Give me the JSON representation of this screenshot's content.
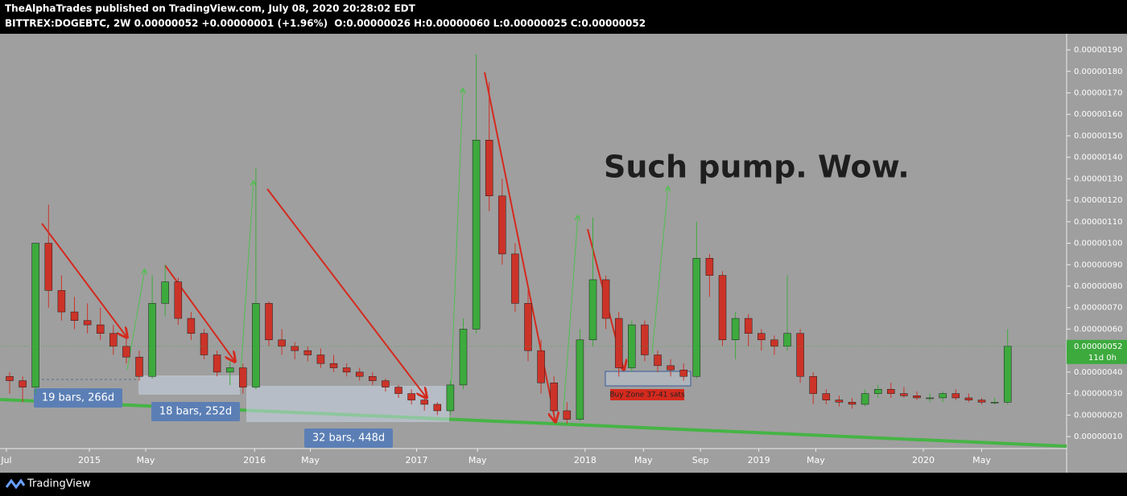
{
  "header": {
    "publisher": "TheAlphaTrades published on TradingView.com, July 08, 2020 20:28:02 EDT",
    "symbol": "BITTREX:DOGEBTC, 2W",
    "last": "0.00000052",
    "change": "+0.00000001 (+1.96%)",
    "ohlc": [
      {
        "label": "O:",
        "value": "0.00000026"
      },
      {
        "label": "H:",
        "value": "0.00000060"
      },
      {
        "label": "L:",
        "value": "0.00000025"
      },
      {
        "label": "C:",
        "value": "0.00000052"
      }
    ]
  },
  "chart_data": {
    "type": "candlestick",
    "categories": [
      null,
      null,
      null,
      null,
      null,
      null,
      null,
      null,
      null,
      null,
      null,
      null,
      null,
      null,
      null,
      null,
      null,
      null,
      null,
      null,
      null,
      null,
      null,
      null,
      null,
      null,
      null,
      null,
      null,
      null,
      null,
      null,
      null,
      null,
      null,
      null,
      null,
      null,
      null,
      null,
      null,
      null,
      null,
      null,
      null,
      null,
      null,
      null,
      null,
      null,
      null,
      null,
      null,
      null,
      null,
      null,
      null,
      null,
      null,
      null,
      null,
      null,
      null,
      null,
      null,
      null,
      null,
      null,
      null,
      null,
      null,
      null,
      null,
      null,
      null,
      null,
      null,
      null
    ],
    "open": [
      3.8e-07,
      3.6e-07,
      3.3e-07,
      1e-06,
      7.8e-07,
      6.8e-07,
      6.4e-07,
      6.2e-07,
      5.8e-07,
      5.2e-07,
      4.7e-07,
      3.8e-07,
      7.2e-07,
      8.2e-07,
      6.5e-07,
      5.8e-07,
      4.8e-07,
      4e-07,
      4.2e-07,
      3.3e-07,
      7.2e-07,
      5.5e-07,
      5.2e-07,
      5e-07,
      4.8e-07,
      4.4e-07,
      4.2e-07,
      4e-07,
      3.8e-07,
      3.6e-07,
      3.3e-07,
      3e-07,
      2.7e-07,
      2.5e-07,
      2.2e-07,
      3.4e-07,
      6e-07,
      1.48e-06,
      1.22e-06,
      9.5e-07,
      7.2e-07,
      5e-07,
      3.5e-07,
      2.2e-07,
      1.8e-07,
      5.5e-07,
      8.3e-07,
      6.5e-07,
      4.2e-07,
      6.2e-07,
      4.8e-07,
      4.3e-07,
      4.1e-07,
      3.8e-07,
      9.3e-07,
      8.5e-07,
      5.5e-07,
      6.5e-07,
      5.8e-07,
      5.5e-07,
      5.2e-07,
      5.8e-07,
      3.8e-07,
      3e-07,
      2.7e-07,
      2.6e-07,
      2.5e-07,
      3e-07,
      3.2e-07,
      3e-07,
      2.9e-07,
      2.8e-07,
      2.8e-07,
      3e-07,
      2.8e-07,
      2.7e-07,
      2.6e-07,
      2.6e-07
    ],
    "high": [
      4e-07,
      3.8e-07,
      1e-06,
      1.18e-06,
      8.5e-07,
      7.5e-07,
      7.2e-07,
      7e-07,
      6.2e-07,
      5.7e-07,
      5e-07,
      8.5e-07,
      9e-07,
      8.4e-07,
      6.8e-07,
      6e-07,
      5e-07,
      4.5e-07,
      4.4e-07,
      1.35e-06,
      7.3e-07,
      6e-07,
      5.4e-07,
      5.2e-07,
      5.1e-07,
      4.8e-07,
      4.4e-07,
      4.2e-07,
      4e-07,
      3.7e-07,
      3.4e-07,
      3.2e-07,
      2.9e-07,
      2.6e-07,
      3.6e-07,
      6.5e-07,
      1.88e-06,
      1.75e-06,
      1.3e-06,
      1e-06,
      7.8e-07,
      5.5e-07,
      3.8e-07,
      2.6e-07,
      6e-07,
      1.12e-06,
      8.5e-07,
      6.8e-07,
      6.4e-07,
      6.4e-07,
      5e-07,
      4.6e-07,
      4.4e-07,
      1.1e-06,
      9.5e-07,
      8.7e-07,
      6.8e-07,
      6.7e-07,
      6e-07,
      5.7e-07,
      8.5e-07,
      6e-07,
      4e-07,
      3.2e-07,
      2.9e-07,
      2.8e-07,
      3.2e-07,
      3.4e-07,
      3.5e-07,
      3.3e-07,
      3.1e-07,
      3e-07,
      3.1e-07,
      3.2e-07,
      3e-07,
      2.8e-07,
      2.8e-07,
      6e-07
    ],
    "low": [
      3e-07,
      2.6e-07,
      3e-07,
      7e-07,
      6.4e-07,
      6e-07,
      5.8e-07,
      5.5e-07,
      4.8e-07,
      4.4e-07,
      3.6e-07,
      3.7e-07,
      6.6e-07,
      6.2e-07,
      5.5e-07,
      4.6e-07,
      3.8e-07,
      3.4e-07,
      3e-07,
      3.2e-07,
      5.2e-07,
      4.8e-07,
      4.6e-07,
      4.5e-07,
      4.2e-07,
      4e-07,
      3.8e-07,
      3.6e-07,
      3.4e-07,
      3.1e-07,
      2.8e-07,
      2.5e-07,
      2.2e-07,
      2e-07,
      2e-07,
      3.2e-07,
      5.8e-07,
      1.15e-06,
      9e-07,
      6.8e-07,
      4.5e-07,
      3e-07,
      1.8e-07,
      1.6e-07,
      1.7e-07,
      5.2e-07,
      6e-07,
      3.8e-07,
      4e-07,
      4.5e-07,
      4e-07,
      3.8e-07,
      3.6e-07,
      3.7e-07,
      7.5e-07,
      5.2e-07,
      4.6e-07,
      5.2e-07,
      5e-07,
      4.8e-07,
      5e-07,
      3.5e-07,
      2.5e-07,
      2.5e-07,
      2.4e-07,
      2.3e-07,
      2.4e-07,
      2.8e-07,
      2.8e-07,
      2.8e-07,
      2.7e-07,
      2.6e-07,
      2.6e-07,
      2.7e-07,
      2.6e-07,
      2.5e-07,
      2.5e-07,
      2.5e-07
    ],
    "close": [
      3.6e-07,
      3.3e-07,
      1e-06,
      7.8e-07,
      6.8e-07,
      6.4e-07,
      6.2e-07,
      5.8e-07,
      5.2e-07,
      4.7e-07,
      3.8e-07,
      7.2e-07,
      8.2e-07,
      6.5e-07,
      5.8e-07,
      4.8e-07,
      4e-07,
      4.2e-07,
      3.3e-07,
      7.2e-07,
      5.5e-07,
      5.2e-07,
      5e-07,
      4.8e-07,
      4.4e-07,
      4.2e-07,
      4e-07,
      3.8e-07,
      3.6e-07,
      3.3e-07,
      3e-07,
      2.7e-07,
      2.5e-07,
      2.2e-07,
      3.4e-07,
      6e-07,
      1.48e-06,
      1.22e-06,
      9.5e-07,
      7.2e-07,
      5e-07,
      3.5e-07,
      2.2e-07,
      1.8e-07,
      5.5e-07,
      8.3e-07,
      6.5e-07,
      4.2e-07,
      6.2e-07,
      4.8e-07,
      4.3e-07,
      4.1e-07,
      3.8e-07,
      9.3e-07,
      8.5e-07,
      5.5e-07,
      6.5e-07,
      5.8e-07,
      5.5e-07,
      5.2e-07,
      5.8e-07,
      3.8e-07,
      3e-07,
      2.7e-07,
      2.6e-07,
      2.5e-07,
      3e-07,
      3.2e-07,
      3e-07,
      2.9e-07,
      2.8e-07,
      2.8e-07,
      3e-07,
      2.8e-07,
      2.7e-07,
      2.6e-07,
      2.6e-07,
      5.2e-07
    ],
    "up_color": "#3daa3d",
    "down_color": "#cc3328",
    "ylim": [
      4.4e-08,
      1.975e-06
    ],
    "yticks": [
      {
        "value": 1e-07,
        "label": "0.00000010"
      },
      {
        "value": 2e-07,
        "label": "0.00000020"
      },
      {
        "value": 3e-07,
        "label": "0.00000030"
      },
      {
        "value": 4e-07,
        "label": "0.00000040"
      },
      {
        "value": 5e-07,
        "label": "0.00000050"
      },
      {
        "value": 6e-07,
        "label": "0.00000060"
      },
      {
        "value": 7e-07,
        "label": "0.00000070"
      },
      {
        "value": 8e-07,
        "label": "0.00000080"
      },
      {
        "value": 9e-07,
        "label": "0.00000090"
      },
      {
        "value": 1e-06,
        "label": "0.00000100"
      },
      {
        "value": 1.1e-06,
        "label": "0.00000110"
      },
      {
        "value": 1.2e-06,
        "label": "0.00000120"
      },
      {
        "value": 1.3e-06,
        "label": "0.00000130"
      },
      {
        "value": 1.4e-06,
        "label": "0.00000140"
      },
      {
        "value": 1.5e-06,
        "label": "0.00000150"
      },
      {
        "value": 1.6e-06,
        "label": "0.00000160"
      },
      {
        "value": 1.7e-06,
        "label": "0.00000170"
      },
      {
        "value": 1.8e-06,
        "label": "0.00000180"
      },
      {
        "value": 1.9e-06,
        "label": "0.00000190"
      }
    ],
    "xticks": [
      {
        "value": -0.25,
        "label": "Jul"
      },
      {
        "value": 6.15,
        "label": "2015"
      },
      {
        "value": 10.5,
        "label": "May"
      },
      {
        "value": 18.9,
        "label": "2016"
      },
      {
        "value": 23.2,
        "label": "May"
      },
      {
        "value": 31.4,
        "label": "2017"
      },
      {
        "value": 36.1,
        "label": "May"
      },
      {
        "value": 44.4,
        "label": "2018"
      },
      {
        "value": 48.9,
        "label": "May"
      },
      {
        "value": 53.3,
        "label": "Sep"
      },
      {
        "value": 57.8,
        "label": "2019"
      },
      {
        "value": 62.2,
        "label": "May"
      },
      {
        "value": 70.5,
        "label": "2020"
      },
      {
        "value": 75,
        "label": "May"
      }
    ],
    "price_line": {
      "value": 5.2e-07,
      "label": "0.00000052",
      "countdown": "11d 0h"
    },
    "annotations": {
      "headline": "Such pump. Wow.",
      "ranges": [
        "19 bars, 266d",
        "18 bars, 252d",
        "32 bars, 448d"
      ],
      "buy_zone": "Buy Zone 37-41 sats"
    }
  },
  "footer": {
    "brand": "TradingView"
  }
}
